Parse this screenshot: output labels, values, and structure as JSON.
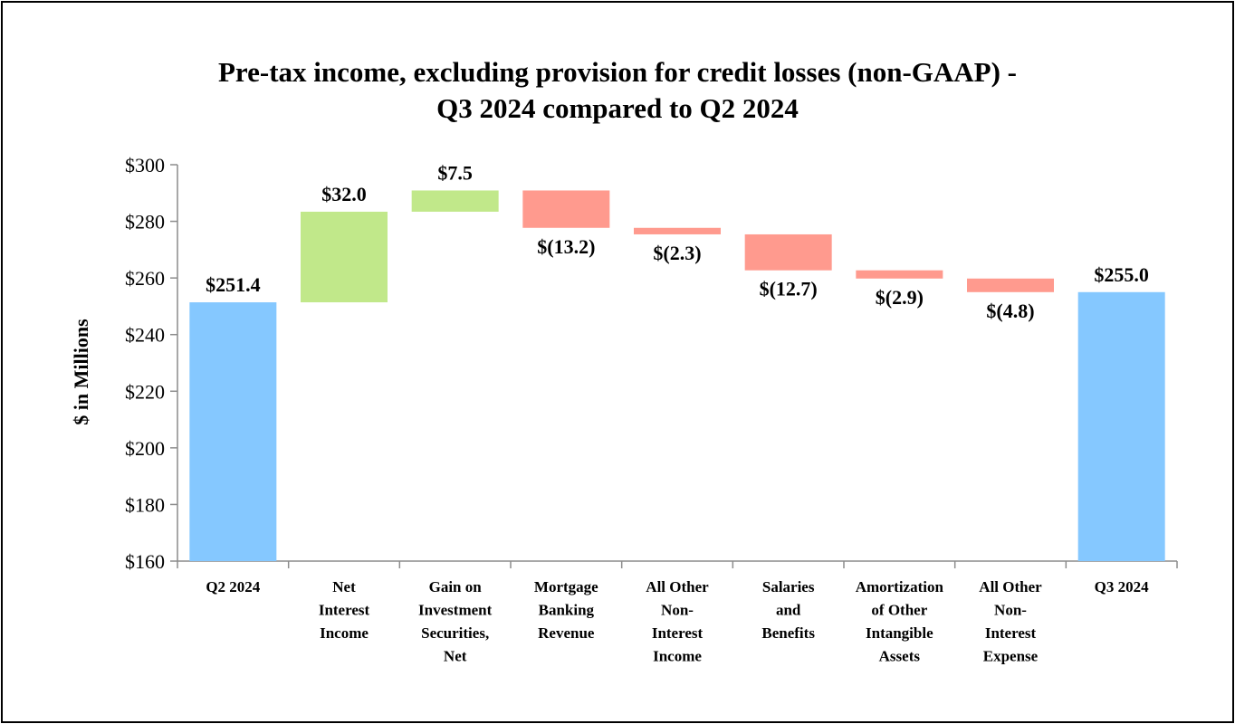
{
  "chart_data": {
    "type": "waterfall",
    "title_line1": "Pre-tax income, excluding provision for credit losses (non-GAAP) -",
    "title_line2": "Q3 2024 compared to Q2 2024",
    "ylabel": "$ in Millions",
    "ylim": [
      160,
      300
    ],
    "yticks": [
      160,
      180,
      200,
      220,
      240,
      260,
      280,
      300
    ],
    "ytick_labels": [
      "$160",
      "$180",
      "$200",
      "$220",
      "$240",
      "$260",
      "$280",
      "$300"
    ],
    "grid": false,
    "categories": [
      [
        "Q2 2024"
      ],
      [
        "Net",
        "Interest",
        "Income"
      ],
      [
        "Gain on",
        "Investment",
        "Securities,",
        "Net"
      ],
      [
        "Mortgage",
        "Banking",
        "Revenue"
      ],
      [
        "All Other",
        "Non-",
        "Interest",
        "Income"
      ],
      [
        "Salaries",
        "and",
        "Benefits"
      ],
      [
        "Amortization",
        "of Other",
        "Intangible",
        "Assets"
      ],
      [
        "All Other",
        "Non-",
        "Interest",
        "Expense"
      ],
      [
        "Q3 2024"
      ]
    ],
    "kinds": [
      "total",
      "delta",
      "delta",
      "delta",
      "delta",
      "delta",
      "delta",
      "delta",
      "total"
    ],
    "values": [
      251.4,
      32.0,
      7.5,
      -13.2,
      -2.3,
      -12.7,
      -2.9,
      -4.8,
      255.0
    ],
    "data_labels": [
      "$251.4",
      "$32.0",
      "$7.5",
      "$(13.2)",
      "$(2.3)",
      "$(12.7)",
      "$(2.9)",
      "$(4.8)",
      "$255.0"
    ],
    "colors": {
      "total": "#85C8FF",
      "increase": "#C1E88A",
      "decrease": "#FF9A8E",
      "axis": "#8C8C8C"
    }
  }
}
